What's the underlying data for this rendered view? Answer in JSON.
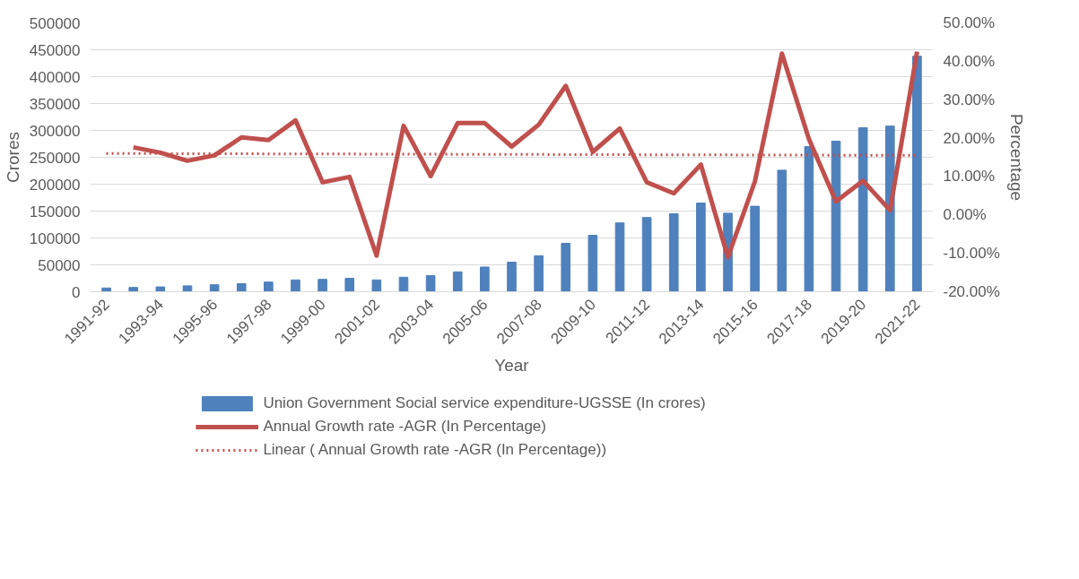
{
  "chart_data": {
    "type": "bar",
    "xlabel": "Year",
    "ylabel": "Crores",
    "y2label": "Percentage",
    "categories": [
      "1991-92",
      null,
      "1993-94",
      null,
      "1995-96",
      null,
      "1997-98",
      null,
      "1999-00",
      null,
      "2001-02",
      null,
      "2003-04",
      null,
      "2005-06",
      null,
      "2007-08",
      null,
      "2009-10",
      null,
      "2011-12",
      null,
      "2013-14",
      null,
      "2015-16",
      null,
      "2017-18",
      null,
      "2019-20",
      null,
      "2021-22"
    ],
    "series": [
      {
        "name": "Union Government Social service expenditure-UGSSE (In crores)",
        "color": "#4f81bd",
        "values": [
          7000,
          8000,
          9000,
          11000,
          13000,
          15000,
          18000,
          22000,
          23000,
          25000,
          22000,
          27000,
          30000,
          37000,
          46000,
          55000,
          67000,
          90000,
          105000,
          128000,
          138000,
          145000,
          165000,
          146000,
          159000,
          226000,
          270000,
          280000,
          305000,
          308000,
          438000
        ]
      },
      {
        "name": "Annual Growth rate -AGR (In Percentage)",
        "type": "line",
        "axis": "y2",
        "color": "#c0504d",
        "line_style": "solid",
        "values": [
          null,
          17.6,
          16.2,
          14.1,
          15.5,
          20.2,
          19.5,
          24.6,
          8.5,
          9.9,
          -10.6,
          23.2,
          10.1,
          23.9,
          23.9,
          17.8,
          23.5,
          33.6,
          16.4,
          22.5,
          8.5,
          5.6,
          13.1,
          -11.0,
          8.7,
          42.0,
          19.7,
          3.5,
          8.9,
          1.2,
          42.5
        ]
      },
      {
        "name": "Linear ( Annual Growth rate -AGR (In Percentage))",
        "type": "line",
        "axis": "y2",
        "color": "#c0504d",
        "line_style": "dotted",
        "x": [
          "1991-92",
          "2021-22"
        ],
        "values": [
          16.0,
          15.5
        ]
      }
    ],
    "ylim": [
      0,
      500000
    ],
    "yticks": [
      0,
      50000,
      100000,
      150000,
      200000,
      250000,
      300000,
      350000,
      400000,
      450000,
      500000
    ],
    "y2lim": [
      -20,
      50
    ],
    "y2ticks": [
      {
        "value": -20,
        "label": "-20.00%"
      },
      {
        "value": -10,
        "label": "-10.00%"
      },
      {
        "value": 0,
        "label": "0.00%"
      },
      {
        "value": 10,
        "label": "10.00%"
      },
      {
        "value": 20,
        "label": "20.00%"
      },
      {
        "value": 30,
        "label": "30.00%"
      },
      {
        "value": 40,
        "label": "40.00%"
      },
      {
        "value": 50,
        "label": "50.00%"
      }
    ],
    "grid": "y",
    "legend": "bottom"
  }
}
